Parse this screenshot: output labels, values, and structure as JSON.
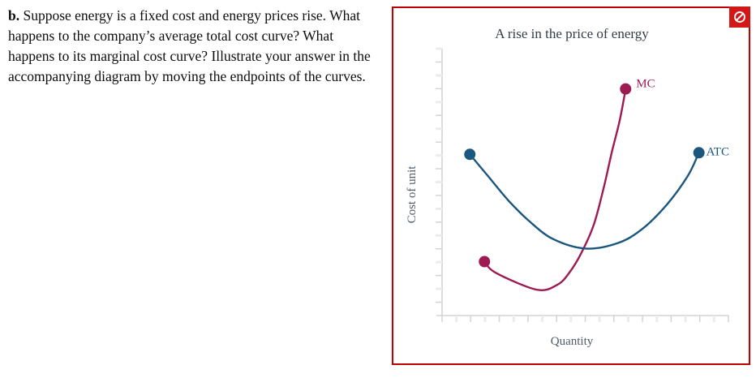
{
  "question": {
    "part_label": "b.",
    "text": "Suppose energy is a fixed cost and energy prices rise. What happens to the company’s average total cost curve? What happens to its marginal cost curve? Illustrate your answer in the accompanying diagram by moving the endpoints of the curves."
  },
  "panel": {
    "border_color": "#c00000",
    "prohibited_icon": {
      "glyph": "prohibited / no-entry symbol",
      "background": "#d31717",
      "foreground": "#ffffff"
    }
  },
  "chart_data": {
    "type": "line",
    "title": "A rise in the price of energy",
    "xlabel": "Quantity",
    "ylabel": "Cost of unit",
    "x_axis": {
      "min": 0,
      "max": 100,
      "tick_count": 21,
      "numeric_labels": false
    },
    "y_axis": {
      "min": 0,
      "max": 100,
      "tick_count": 20,
      "numeric_labels": false
    },
    "grid": false,
    "legend": "inline-end-labels",
    "series": [
      {
        "name": "MC",
        "color": "#9c1b53",
        "endpoint_dots": true,
        "draggable_endpoints": true,
        "label_offset": [
          13,
          -2
        ],
        "points": [
          [
            14.8,
            20.2
          ],
          [
            18.8,
            16.0
          ],
          [
            33.0,
            9.7
          ],
          [
            40.2,
            11.5
          ],
          [
            44.4,
            16.0
          ],
          [
            48.7,
            23.6
          ],
          [
            53.0,
            34.1
          ],
          [
            56.4,
            47.7
          ],
          [
            59.3,
            61.3
          ],
          [
            62.1,
            73.4
          ],
          [
            64.1,
            84.9
          ]
        ]
      },
      {
        "name": "ATC",
        "color": "#1a567e",
        "endpoint_dots": true,
        "draggable_endpoints": true,
        "label_offset": [
          9,
          3
        ],
        "points": [
          [
            9.7,
            60.4
          ],
          [
            16.0,
            52.3
          ],
          [
            23.1,
            43.2
          ],
          [
            30.2,
            35.6
          ],
          [
            38.7,
            28.7
          ],
          [
            50.1,
            25.1
          ],
          [
            61.5,
            27.2
          ],
          [
            70.1,
            32.6
          ],
          [
            78.6,
            41.7
          ],
          [
            85.8,
            52.3
          ],
          [
            89.7,
            61.0
          ]
        ]
      }
    ],
    "style": {
      "axis_color": "#d4d4d4",
      "tick_major_color": "#d4d4d4",
      "tick_minor_color": "#ececec",
      "title_color": "#333b46",
      "axis_label_color": "#4f5b66",
      "line_width": 2.4,
      "dot_radius": 7
    }
  }
}
